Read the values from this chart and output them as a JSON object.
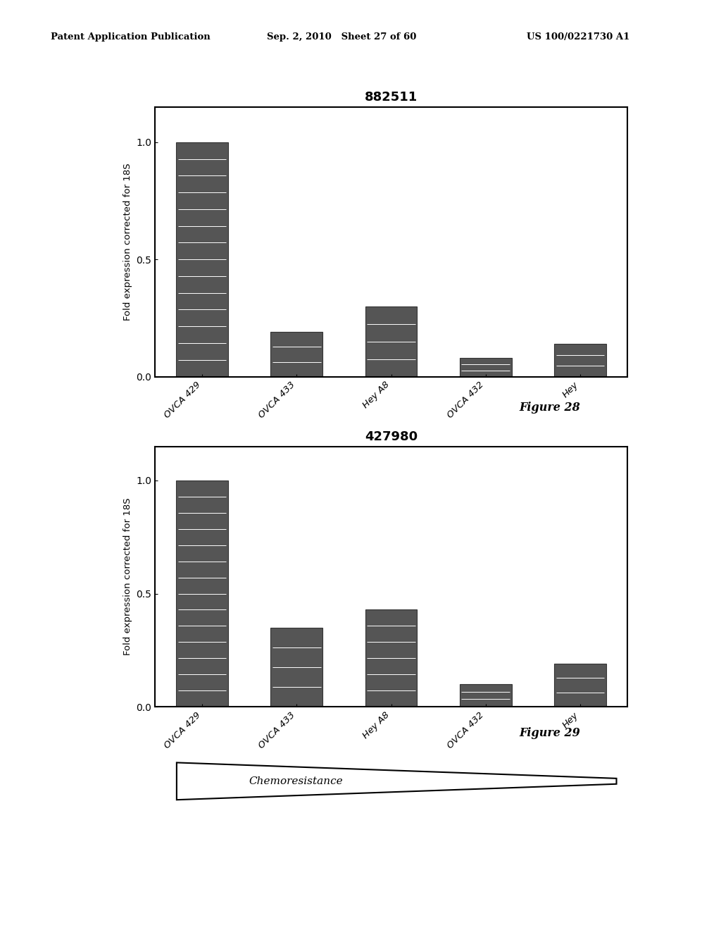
{
  "fig28": {
    "title": "882511",
    "categories": [
      "OVCA 429",
      "OVCA 433",
      "Hey A8",
      "OVCA 432",
      "Hey"
    ],
    "values": [
      1.0,
      0.19,
      0.3,
      0.08,
      0.14
    ],
    "ylabel": "Fold expression corrected for 18S",
    "ylim": [
      0,
      1.15
    ],
    "yticks": [
      0.0,
      0.5,
      1.0
    ],
    "bar_color": "#555555",
    "figure_label": "Figure 28"
  },
  "fig29": {
    "title": "427980",
    "categories": [
      "OVCA 429",
      "OVCA 433",
      "Hey A8",
      "OVCA 432",
      "Hey"
    ],
    "values": [
      1.0,
      0.35,
      0.43,
      0.1,
      0.19
    ],
    "ylabel": "Fold expression corrected for 18S",
    "ylim": [
      0,
      1.15
    ],
    "yticks": [
      0.0,
      0.5,
      1.0
    ],
    "bar_color": "#555555",
    "figure_label": "Figure 29",
    "chemoresistance_label": "Chemoresistance"
  },
  "header_left": "Patent Application Publication",
  "header_center": "Sep. 2, 2010   Sheet 27 of 60",
  "header_right": "US 100/0221730 A1",
  "bg_color": "#ffffff",
  "text_color": "#000000"
}
